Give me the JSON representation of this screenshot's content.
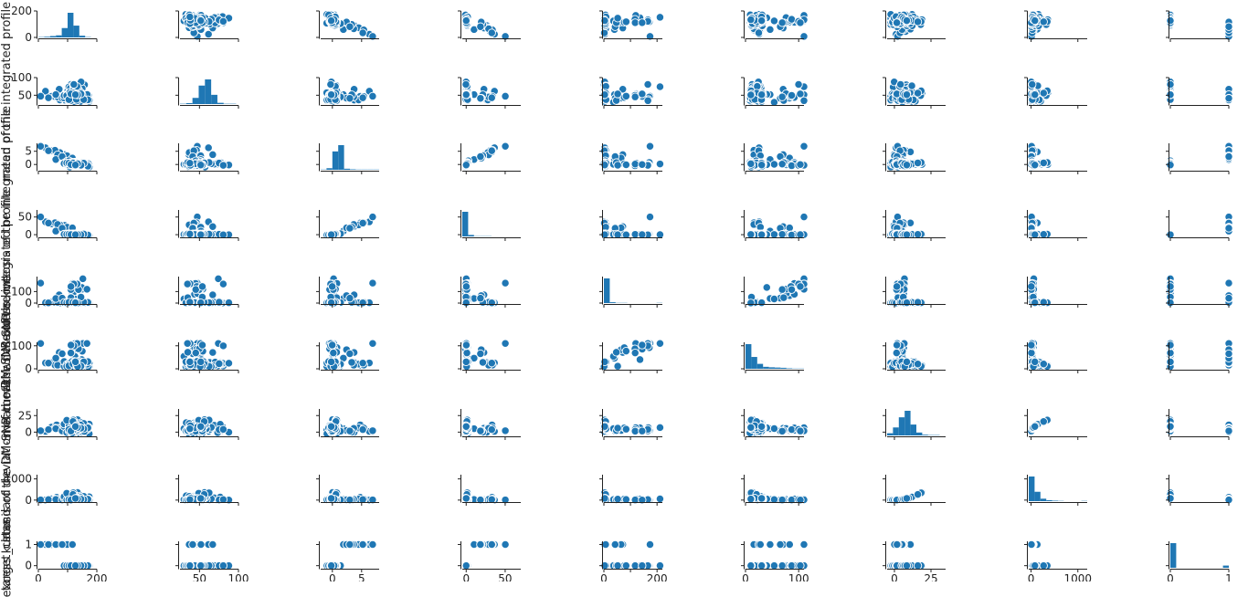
{
  "figure": {
    "background": "#ffffff",
    "y_labels": [
      {
        "row": 1,
        "text": "mean of the integrated profile"
      },
      {
        "row": 3,
        "text": "excess kurtosis of the integrated profile"
      },
      {
        "row": 4,
        "text": "skewness of the integrated profile"
      },
      {
        "row": 5,
        "text": "mean of the DM-SNR curve"
      },
      {
        "row": 6,
        "text": "standard deviation of the DM-SNR curve"
      },
      {
        "row": 7,
        "text": "excess kurtosis of the DM-SNR curve"
      },
      {
        "row": 8,
        "text": "target_class"
      }
    ]
  },
  "chart_data": {
    "type": "scatter",
    "kind": "pairplot",
    "color": "#1f77b4",
    "marker_edge_color": "#ffffff",
    "diagonal": "histogram",
    "variables": [
      {
        "name": "mean of the integrated profile",
        "range": [
          0,
          200
        ],
        "ticks": [
          0,
          100,
          200
        ],
        "tick_labels": [
          "0",
          "",
          "200"
        ],
        "y_range": [
          0,
          200
        ],
        "y_ticks": [
          0,
          200
        ],
        "y_tick_labels": [
          "0",
          "200"
        ]
      },
      {
        "name": "standard deviation of the integrated profile",
        "range": [
          25,
          100
        ],
        "ticks": [
          50,
          100
        ],
        "tick_labels": [
          "50",
          "100"
        ],
        "y_range": [
          25,
          100
        ],
        "y_ticks": [
          50,
          100
        ],
        "y_tick_labels": [
          "50",
          "100"
        ]
      },
      {
        "name": "excess kurtosis of the integrated profile",
        "range": [
          -2,
          8
        ],
        "ticks": [
          0,
          5
        ],
        "tick_labels": [
          "0",
          "5"
        ],
        "y_range": [
          -2,
          8
        ],
        "y_ticks": [
          0,
          5
        ],
        "y_tick_labels": [
          "0",
          "5"
        ]
      },
      {
        "name": "skewness of the integrated profile",
        "range": [
          -5,
          70
        ],
        "ticks": [
          0,
          50
        ],
        "tick_labels": [
          "0",
          "50"
        ],
        "y_range": [
          -5,
          70
        ],
        "y_ticks": [
          0,
          50
        ],
        "y_tick_labels": [
          "0",
          "50"
        ]
      },
      {
        "name": "mean of the DM-SNR curve",
        "range": [
          0,
          220
        ],
        "ticks": [
          0,
          100,
          200
        ],
        "tick_labels": [
          "0",
          "",
          "200"
        ],
        "y_range": [
          0,
          230
        ],
        "y_ticks": [
          0,
          100
        ],
        "y_tick_labels": [
          "0",
          "100"
        ]
      },
      {
        "name": "standard deviation of the DM-SNR curve",
        "range": [
          0,
          110
        ],
        "ticks": [
          0,
          100
        ],
        "tick_labels": [
          "0",
          "100"
        ],
        "y_range": [
          0,
          115
        ],
        "y_ticks": [
          0,
          100
        ],
        "y_tick_labels": [
          "0",
          "100"
        ]
      },
      {
        "name": "excess kurtosis of the DM-SNR curve",
        "range": [
          -5,
          35
        ],
        "ticks": [
          0,
          25
        ],
        "tick_labels": [
          "0",
          "25"
        ],
        "y_range": [
          -5,
          35
        ],
        "y_ticks": [
          0,
          25
        ],
        "y_tick_labels": [
          "0",
          "25"
        ]
      },
      {
        "name": "skewness of the DM-SNR curve",
        "range": [
          -50,
          1200
        ],
        "ticks": [
          0,
          1000
        ],
        "tick_labels": [
          "0",
          "1000"
        ],
        "y_range": [
          -50,
          1200
        ],
        "y_ticks": [
          0,
          1000
        ],
        "y_tick_labels": [
          "0",
          "1000"
        ]
      },
      {
        "name": "target_class",
        "range": [
          0,
          1
        ],
        "ticks": [
          0,
          1
        ],
        "tick_labels": [
          "0",
          "1"
        ],
        "y_range": [
          -0.1,
          1.15
        ],
        "y_ticks": [
          0,
          1
        ],
        "y_tick_labels": [
          "0",
          "1"
        ]
      }
    ],
    "histograms": [
      {
        "var": 0,
        "edges": [
          0,
          20,
          40,
          60,
          80,
          100,
          120,
          140,
          160,
          180
        ],
        "counts": [
          1,
          2,
          4,
          6,
          27,
          71,
          34,
          5,
          1
        ]
      },
      {
        "var": 1,
        "edges": [
          25,
          33,
          41,
          49,
          57,
          65,
          73,
          81,
          89,
          97
        ],
        "counts": [
          1,
          3,
          20,
          60,
          80,
          30,
          4,
          1,
          1
        ]
      },
      {
        "var": 2,
        "edges": [
          -2,
          -1,
          0,
          1,
          2,
          3,
          4,
          5,
          6,
          7,
          8
        ],
        "counts": [
          1,
          6,
          70,
          94,
          4,
          2,
          1,
          1,
          1,
          1
        ]
      },
      {
        "var": 3,
        "edges": [
          -5,
          2.5,
          10,
          17.5,
          25,
          32.5,
          40,
          47.5,
          55,
          62.5,
          70
        ],
        "counts": [
          100,
          6,
          1,
          1,
          1,
          0,
          0,
          0,
          0,
          0
        ]
      },
      {
        "var": 4,
        "edges": [
          0,
          22,
          44,
          66,
          88,
          110,
          132,
          154,
          176,
          198,
          220
        ],
        "counts": [
          120,
          4,
          1,
          1,
          0,
          0,
          0,
          0,
          0,
          1
        ]
      },
      {
        "var": 5,
        "edges": [
          0,
          11,
          22,
          33,
          44,
          55,
          66,
          77,
          88,
          99,
          110
        ],
        "counts": [
          100,
          48,
          20,
          8,
          6,
          5,
          4,
          2,
          1,
          1
        ]
      },
      {
        "var": 6,
        "edges": [
          -5,
          -1,
          3,
          7,
          11,
          15,
          19,
          23,
          27,
          31,
          35
        ],
        "counts": [
          6,
          22,
          50,
          68,
          30,
          8,
          2,
          1,
          1,
          0
        ]
      },
      {
        "var": 7,
        "edges": [
          -50,
          75,
          200,
          325,
          450,
          575,
          700,
          825,
          950,
          1075,
          1200
        ],
        "counts": [
          100,
          38,
          10,
          4,
          2,
          1,
          0,
          0,
          0,
          1
        ]
      },
      {
        "var": 8,
        "edges": [
          0,
          0.1,
          0.2,
          0.3,
          0.4,
          0.5,
          0.6,
          0.7,
          0.8,
          0.9,
          1.0
        ],
        "counts": [
          100,
          0,
          0,
          0,
          0,
          0,
          0,
          0,
          0,
          9
        ]
      }
    ]
  }
}
